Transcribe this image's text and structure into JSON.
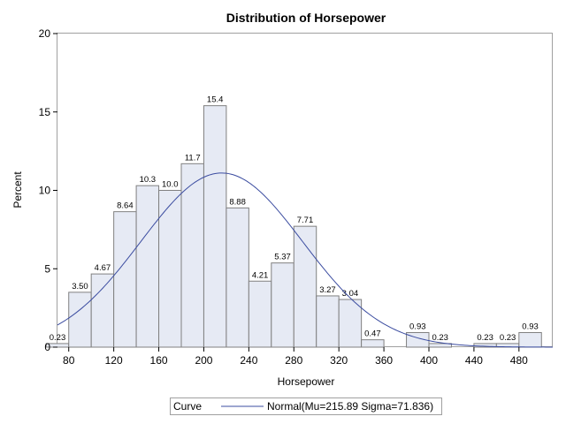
{
  "chart_data": {
    "type": "bar",
    "title": "Distribution of Horsepower",
    "xlabel": "Horsepower",
    "ylabel": "Percent",
    "xlim": [
      70,
      510
    ],
    "ylim": [
      0,
      20
    ],
    "x_ticks": [
      80,
      120,
      160,
      200,
      240,
      280,
      320,
      360,
      400,
      440,
      480
    ],
    "y_ticks": [
      0,
      5,
      10,
      15,
      20
    ],
    "bin_width": 20,
    "bins": [
      {
        "center": 70,
        "value": 0.23,
        "label": "0.23"
      },
      {
        "center": 90,
        "value": 3.5,
        "label": "3.50"
      },
      {
        "center": 110,
        "value": 4.67,
        "label": "4.67"
      },
      {
        "center": 130,
        "value": 8.64,
        "label": "8.64"
      },
      {
        "center": 150,
        "value": 10.3,
        "label": "10.3"
      },
      {
        "center": 170,
        "value": 10.0,
        "label": "10.0"
      },
      {
        "center": 190,
        "value": 11.7,
        "label": "11.7"
      },
      {
        "center": 210,
        "value": 15.4,
        "label": "15.4"
      },
      {
        "center": 230,
        "value": 8.88,
        "label": "8.88"
      },
      {
        "center": 250,
        "value": 4.21,
        "label": "4.21"
      },
      {
        "center": 270,
        "value": 5.37,
        "label": "5.37"
      },
      {
        "center": 290,
        "value": 7.71,
        "label": "7.71"
      },
      {
        "center": 310,
        "value": 3.27,
        "label": "3.27"
      },
      {
        "center": 330,
        "value": 3.04,
        "label": "3.04"
      },
      {
        "center": 350,
        "value": 0.47,
        "label": "0.47"
      },
      {
        "center": 390,
        "value": 0.93,
        "label": "0.93"
      },
      {
        "center": 410,
        "value": 0.23,
        "label": "0.23"
      },
      {
        "center": 450,
        "value": 0.23,
        "label": "0.23"
      },
      {
        "center": 470,
        "value": 0.23,
        "label": "0.23"
      },
      {
        "center": 490,
        "value": 0.93,
        "label": "0.93"
      }
    ],
    "curve": {
      "type": "normal",
      "mu": 215.89,
      "sigma": 71.836,
      "color": "#3b4ca0"
    },
    "legend": {
      "title": "Curve",
      "entry": "Normal(Mu=215.89 Sigma=71.836)",
      "placement": "bottom"
    },
    "bar_fill": "#e6eaf4",
    "bar_stroke": "#808080",
    "grid": false
  }
}
